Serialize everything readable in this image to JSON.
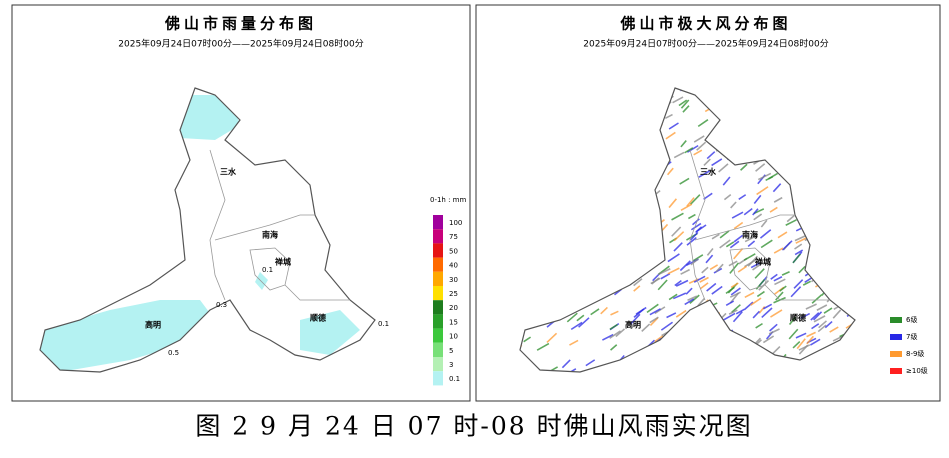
{
  "rain_map": {
    "title": "佛山市雨量分布图",
    "subtitle": "2025年09月24日07时00分——2025年09月24日08时00分",
    "districts": [
      "三水",
      "南海",
      "禅城",
      "顺德",
      "高明"
    ],
    "rain_labels": [
      "0.1",
      "0.3",
      "0.5",
      "0.1"
    ],
    "legend": {
      "title": "0-1h : mm",
      "levels": [
        {
          "label": "100",
          "color": "#a0009c"
        },
        {
          "label": "75",
          "color": "#c8007a"
        },
        {
          "label": "50",
          "color": "#e61414"
        },
        {
          "label": "40",
          "color": "#ff6a00"
        },
        {
          "label": "30",
          "color": "#ffa800"
        },
        {
          "label": "25",
          "color": "#ffe000"
        },
        {
          "label": "20",
          "color": "#1e7d1e"
        },
        {
          "label": "15",
          "color": "#2aa02a"
        },
        {
          "label": "10",
          "color": "#3cc83c"
        },
        {
          "label": "5",
          "color": "#78e078"
        },
        {
          "label": "3",
          "color": "#b4f0b4"
        },
        {
          "label": "0.1",
          "color": "#b4f2f2"
        }
      ]
    }
  },
  "wind_map": {
    "title": "佛山市极大风分布图",
    "subtitle": "2025年09月24日07时00分——2025年09月24日08时00分",
    "districts": [
      "三水",
      "南海",
      "禅城",
      "顺德",
      "高明"
    ],
    "legend": {
      "levels": [
        {
          "label": "6级",
          "color": "#2a8c2a"
        },
        {
          "label": "7级",
          "color": "#2828e6"
        },
        {
          "label": "8-9级",
          "color": "#ff9a30"
        },
        {
          "label": "≥10级",
          "color": "#ff2020"
        }
      ]
    }
  },
  "caption": "图 2   9 月 24 日 07 时-08 时佛山风雨实况图"
}
